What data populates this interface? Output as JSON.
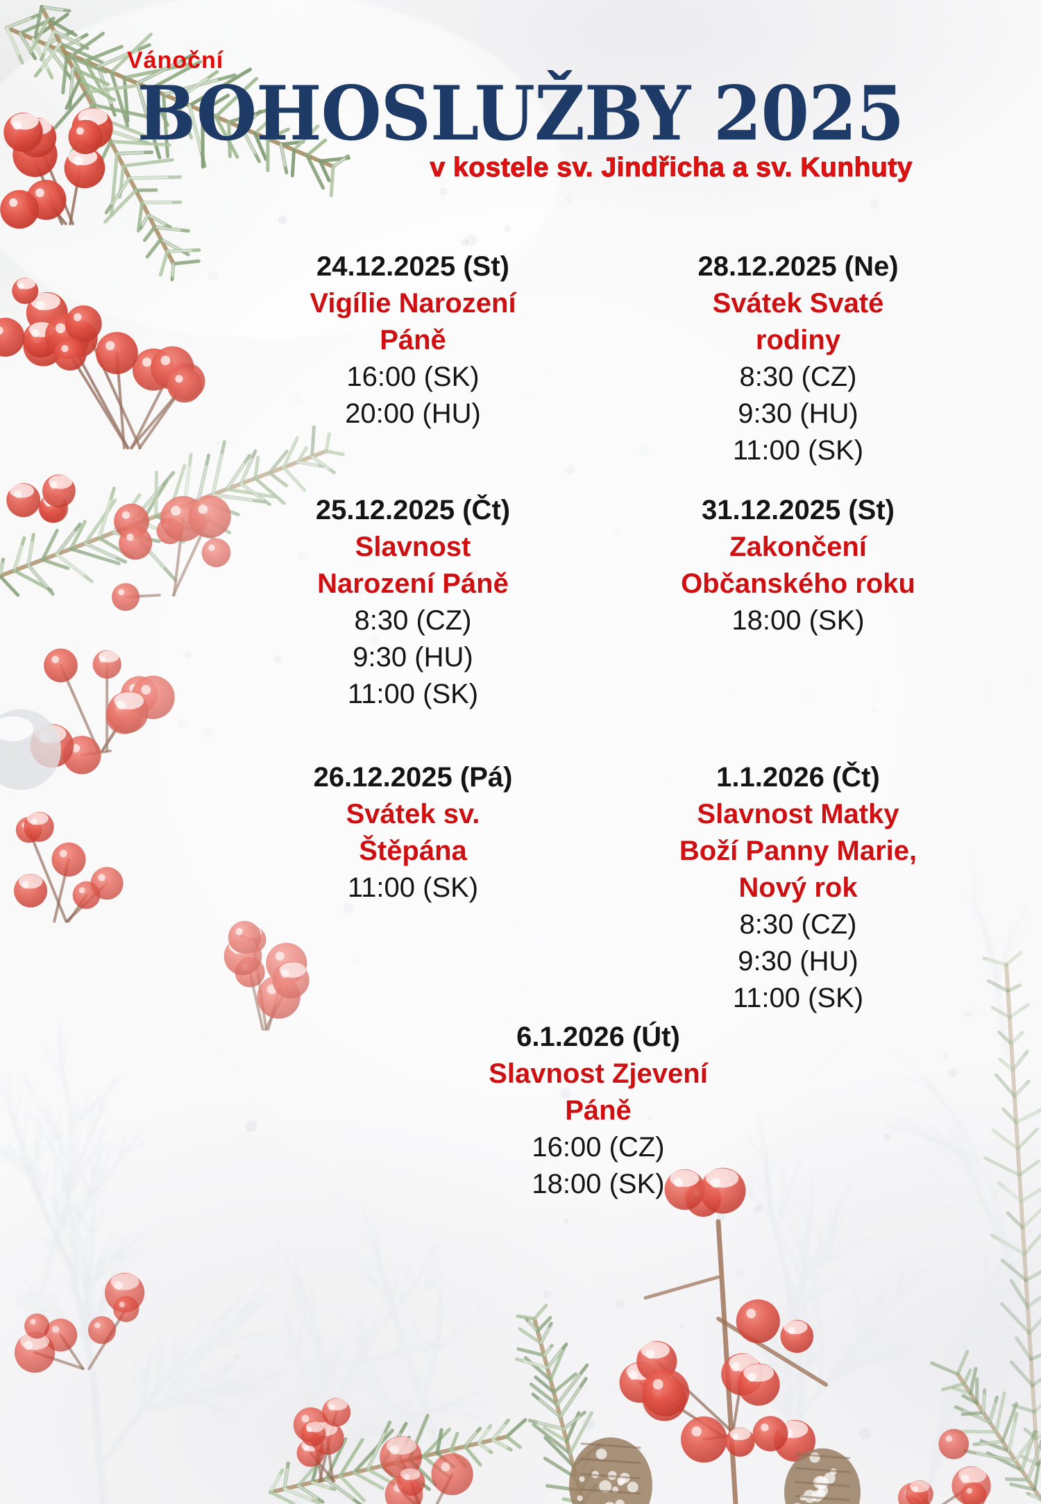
{
  "poster": {
    "kicker": "Vánoční",
    "title": "BOHOSLUŽBY 2025",
    "subtitle": "v kostele sv. Jindřicha a sv. Kunhuty",
    "colors": {
      "kicker_red": "#e00b0b",
      "title_navy": "#1e3a67",
      "subtitle_red": "#e01212",
      "event_name_red": "#cf1012",
      "text_black": "#141414",
      "berry_red": "#d6372a",
      "pine_green": "#7d9a6d",
      "frost_gray": "#e7e9ed"
    },
    "decorations": [
      "pine-branch",
      "holly-berries",
      "frosted-branch",
      "pinecone",
      "snow-speckles"
    ],
    "events": [
      {
        "date": "24.12.2025 (St)",
        "name_lines": [
          "Vigílie Narození",
          "Páně"
        ],
        "times": [
          "16:00 (SK)",
          "20:00 (HU)"
        ]
      },
      {
        "date": "28.12.2025 (Ne)",
        "name_lines": [
          "Svátek Svaté",
          "rodiny"
        ],
        "times": [
          "8:30 (CZ)",
          "9:30 (HU)",
          "11:00 (SK)"
        ]
      },
      {
        "date": "25.12.2025 (Čt)",
        "name_lines": [
          "Slavnost",
          "Narození Páně"
        ],
        "times": [
          "8:30 (CZ)",
          "9:30 (HU)",
          "11:00 (SK)"
        ]
      },
      {
        "date": "31.12.2025 (St)",
        "name_lines": [
          "Zakončení",
          "Občanského roku"
        ],
        "times": [
          "18:00 (SK)"
        ]
      },
      {
        "date": "26.12.2025 (Pá)",
        "name_lines": [
          "Svátek sv.",
          "Štěpána"
        ],
        "times": [
          "11:00 (SK)"
        ]
      },
      {
        "date": "1.1.2026 (Čt)",
        "name_lines": [
          "Slavnost Matky",
          "Boží Panny Marie,",
          "Nový rok"
        ],
        "times": [
          "8:30 (CZ)",
          "9:30 (HU)",
          "11:00 (SK)"
        ]
      },
      {
        "date": "6.1.2026 (Út)",
        "name_lines": [
          "Slavnost Zjevení",
          "Páně"
        ],
        "times": [
          "16:00 (CZ)",
          "18:00 (SK)"
        ]
      }
    ]
  }
}
